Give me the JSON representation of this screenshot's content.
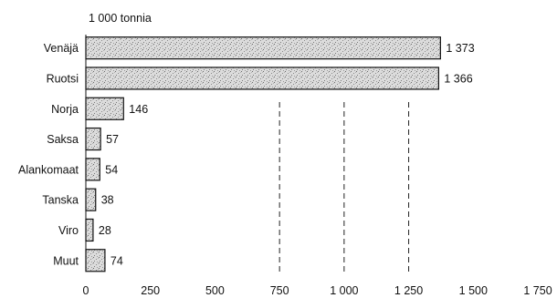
{
  "chart_data": {
    "type": "bar",
    "orientation": "horizontal",
    "unit_label": "1 000 tonnia",
    "categories": [
      "Venäjä",
      "Ruotsi",
      "Norja",
      "Saksa",
      "Alankomaat",
      "Tanska",
      "Viro",
      "Muut"
    ],
    "values": [
      1373,
      1366,
      146,
      57,
      54,
      38,
      28,
      74
    ],
    "value_labels": [
      "1 373",
      "1 366",
      "146",
      "57",
      "54",
      "38",
      "28",
      "74"
    ],
    "xlim": [
      0,
      1750
    ],
    "x_ticks": [
      0,
      250,
      500,
      750,
      1000,
      1250,
      1500,
      1750
    ],
    "x_tick_labels": [
      "0",
      "250",
      "500",
      "750",
      "1 000",
      "1 250",
      "1 500",
      "1 750"
    ],
    "gridlines_at": [
      750,
      1000,
      1250
    ],
    "grid": true,
    "bar_pattern": "stippled grey"
  }
}
